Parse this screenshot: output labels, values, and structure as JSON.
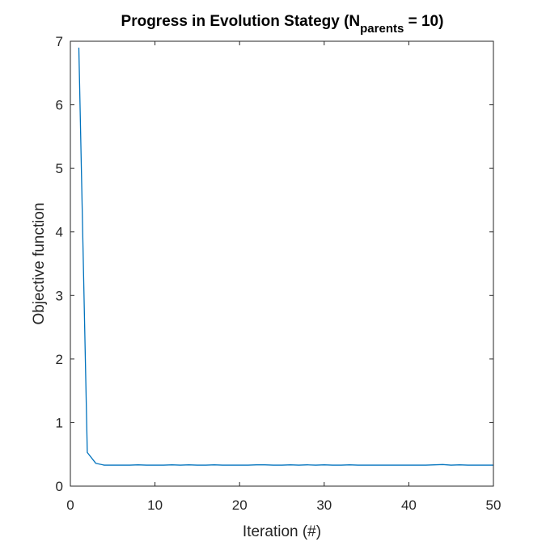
{
  "chart_data": {
    "type": "line",
    "title": {
      "prefix": "Progress in Evolution Stategy (N",
      "subscript": "parents",
      "suffix": " = 10)"
    },
    "xlabel": "Iteration (#)",
    "ylabel": "Objective function",
    "xlim": [
      0,
      50
    ],
    "ylim": [
      0,
      7
    ],
    "xticks": [
      0,
      10,
      20,
      30,
      40,
      50
    ],
    "yticks": [
      0,
      1,
      2,
      3,
      4,
      5,
      6,
      7
    ],
    "grid": false,
    "series": [
      {
        "color": "#0072BD",
        "x": [
          1,
          2,
          3,
          4,
          5,
          6,
          7,
          8,
          9,
          10,
          11,
          12,
          13,
          14,
          15,
          16,
          17,
          18,
          19,
          20,
          21,
          22,
          23,
          24,
          25,
          26,
          27,
          28,
          29,
          30,
          31,
          32,
          33,
          34,
          35,
          36,
          37,
          38,
          39,
          40,
          41,
          42,
          43,
          44,
          45,
          46,
          47,
          48,
          49,
          50
        ],
        "y": [
          6.9,
          0.53,
          0.36,
          0.33,
          0.33,
          0.33,
          0.33,
          0.335,
          0.33,
          0.33,
          0.33,
          0.335,
          0.33,
          0.335,
          0.33,
          0.33,
          0.335,
          0.33,
          0.33,
          0.33,
          0.33,
          0.335,
          0.335,
          0.33,
          0.33,
          0.335,
          0.33,
          0.335,
          0.33,
          0.335,
          0.33,
          0.33,
          0.335,
          0.33,
          0.33,
          0.33,
          0.33,
          0.33,
          0.33,
          0.33,
          0.33,
          0.33,
          0.335,
          0.34,
          0.33,
          0.335,
          0.33,
          0.33,
          0.33,
          0.33
        ]
      }
    ]
  }
}
